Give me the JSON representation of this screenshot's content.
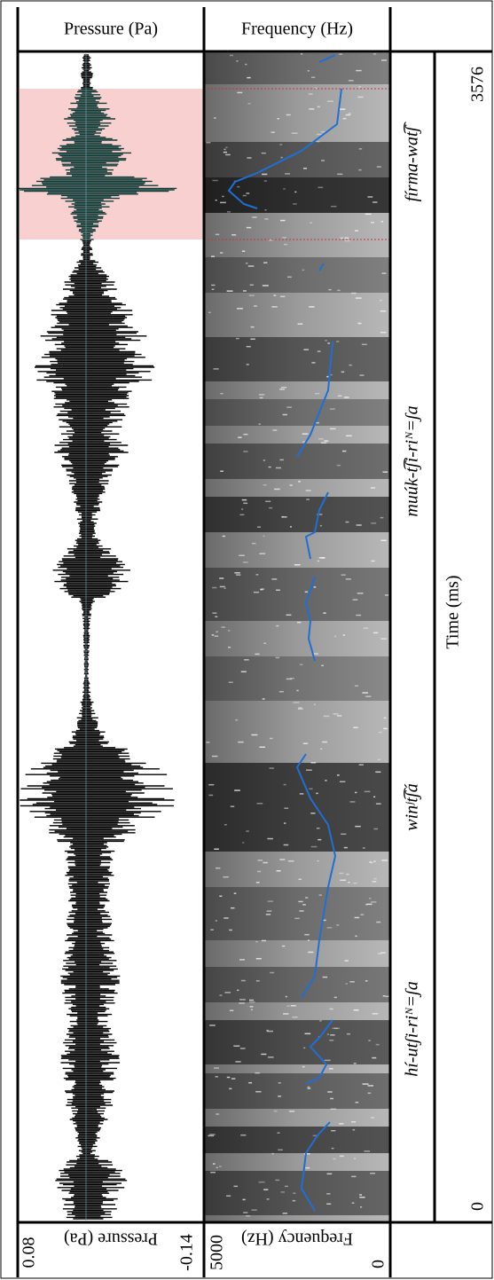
{
  "panels": {
    "pressure": {
      "header": "Pressure (Pa)",
      "axis_label": "Pressure (Pa)",
      "max": 0.08,
      "min": -0.14
    },
    "frequency": {
      "header": "Frequency (Hz)",
      "axis_label": "Frequency (Hz)",
      "max": 5000,
      "min": 0
    }
  },
  "time": {
    "label": "Time (ms)",
    "start": 0,
    "end": 3576
  },
  "tier": {
    "intervals": [
      "fírma-wat͡ʃ",
      "muúk-t͡ʃi-riᴺ=ʃa",
      "winʲt͡ʃá",
      "hí-utʃi-riᴺ=ʃa"
    ]
  }
}
